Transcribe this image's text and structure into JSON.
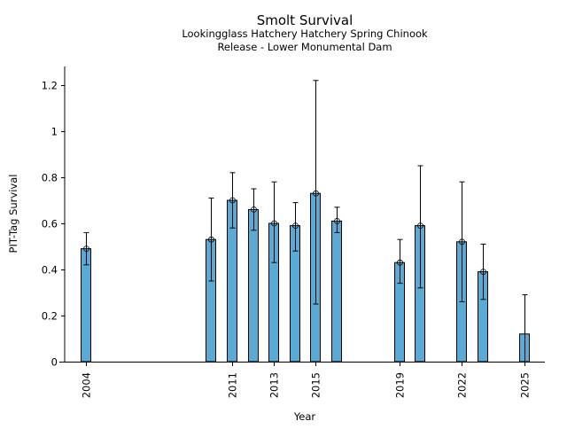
{
  "chart_data": {
    "type": "bar",
    "title": "Smolt Survival",
    "subtitle_lines": [
      "Lookingglass Hatchery Hatchery Spring Chinook",
      "Release - Lower Monumental Dam"
    ],
    "xlabel": "Year",
    "ylabel": "PIT-Tag Survival",
    "ylim": [
      0,
      1.28
    ],
    "xlim": [
      2003.0,
      2026.0
    ],
    "yticks": [
      0,
      0.2,
      0.4,
      0.6,
      0.8,
      1,
      1.2
    ],
    "ytick_labels": [
      "0",
      "0.2",
      "0.4",
      "0.6",
      "0.8",
      "1",
      "1.2"
    ],
    "xticks": [
      2004,
      2011,
      2013,
      2015,
      2019,
      2022,
      2025
    ],
    "xtick_labels": [
      "2004",
      "2011",
      "2013",
      "2015",
      "2019",
      "2022",
      "2025"
    ],
    "bar_color": "#5aaad6",
    "grid": false,
    "legend": "none",
    "series": [
      {
        "name": "PIT-Tag Survival",
        "points": [
          {
            "year": 2004,
            "value": 0.49,
            "lower": 0.42,
            "upper": 0.56,
            "marker": true
          },
          {
            "year": 2010,
            "value": 0.53,
            "lower": 0.35,
            "upper": 0.71,
            "marker": true
          },
          {
            "year": 2011,
            "value": 0.7,
            "lower": 0.58,
            "upper": 0.82,
            "marker": true
          },
          {
            "year": 2012,
            "value": 0.66,
            "lower": 0.57,
            "upper": 0.75,
            "marker": true
          },
          {
            "year": 2013,
            "value": 0.6,
            "lower": 0.43,
            "upper": 0.78,
            "marker": true
          },
          {
            "year": 2014,
            "value": 0.59,
            "lower": 0.48,
            "upper": 0.69,
            "marker": true
          },
          {
            "year": 2015,
            "value": 0.73,
            "lower": 0.25,
            "upper": 1.22,
            "marker": true
          },
          {
            "year": 2016,
            "value": 0.61,
            "lower": 0.56,
            "upper": 0.67,
            "marker": true
          },
          {
            "year": 2019,
            "value": 0.43,
            "lower": 0.34,
            "upper": 0.53,
            "marker": true
          },
          {
            "year": 2020,
            "value": 0.59,
            "lower": 0.32,
            "upper": 0.85,
            "marker": true
          },
          {
            "year": 2022,
            "value": 0.52,
            "lower": 0.26,
            "upper": 0.78,
            "marker": true
          },
          {
            "year": 2023,
            "value": 0.39,
            "lower": 0.27,
            "upper": 0.51,
            "marker": true
          },
          {
            "year": 2025,
            "value": 0.12,
            "lower": 0.0,
            "upper": 0.29,
            "marker": false
          }
        ]
      }
    ]
  }
}
